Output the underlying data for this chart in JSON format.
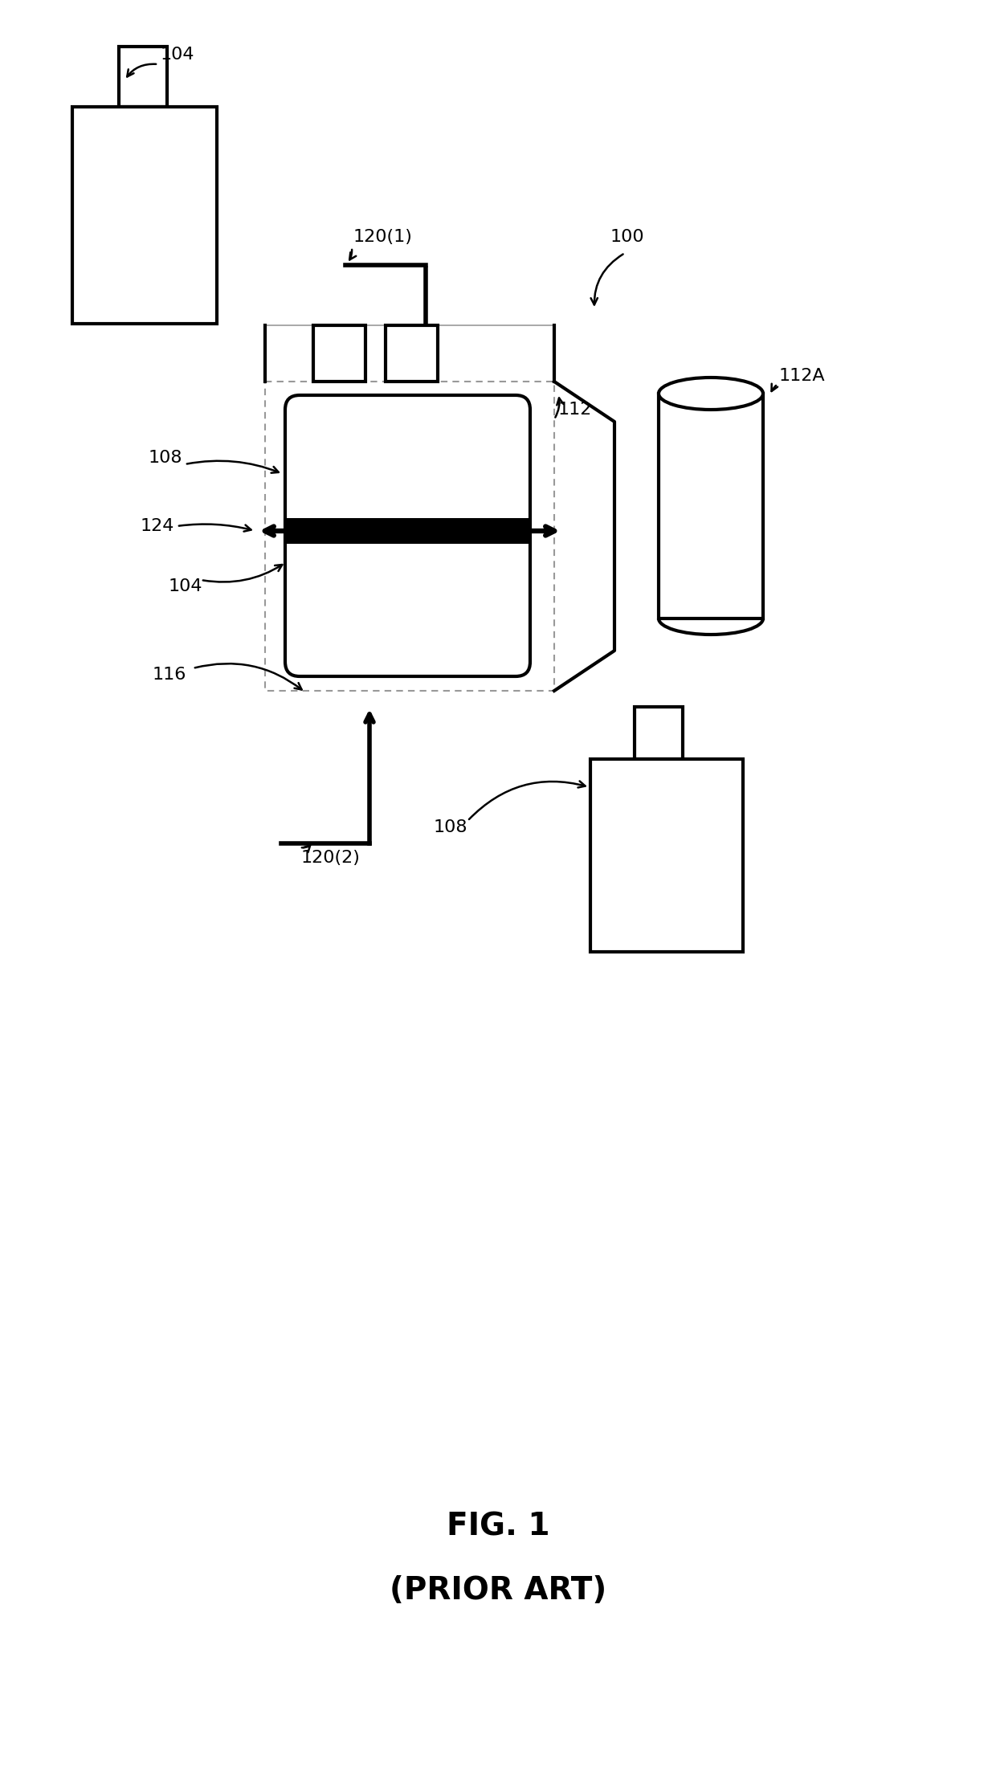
{
  "title1": "FIG. 1",
  "title2": "(PRIOR ART)",
  "bg_color": "#ffffff",
  "line_color": "#000000",
  "thick_lw": 3.0,
  "thin_lw": 1.2,
  "arrow_lw": 1.8,
  "label_fontsize": 16,
  "title_fontsize": 28
}
